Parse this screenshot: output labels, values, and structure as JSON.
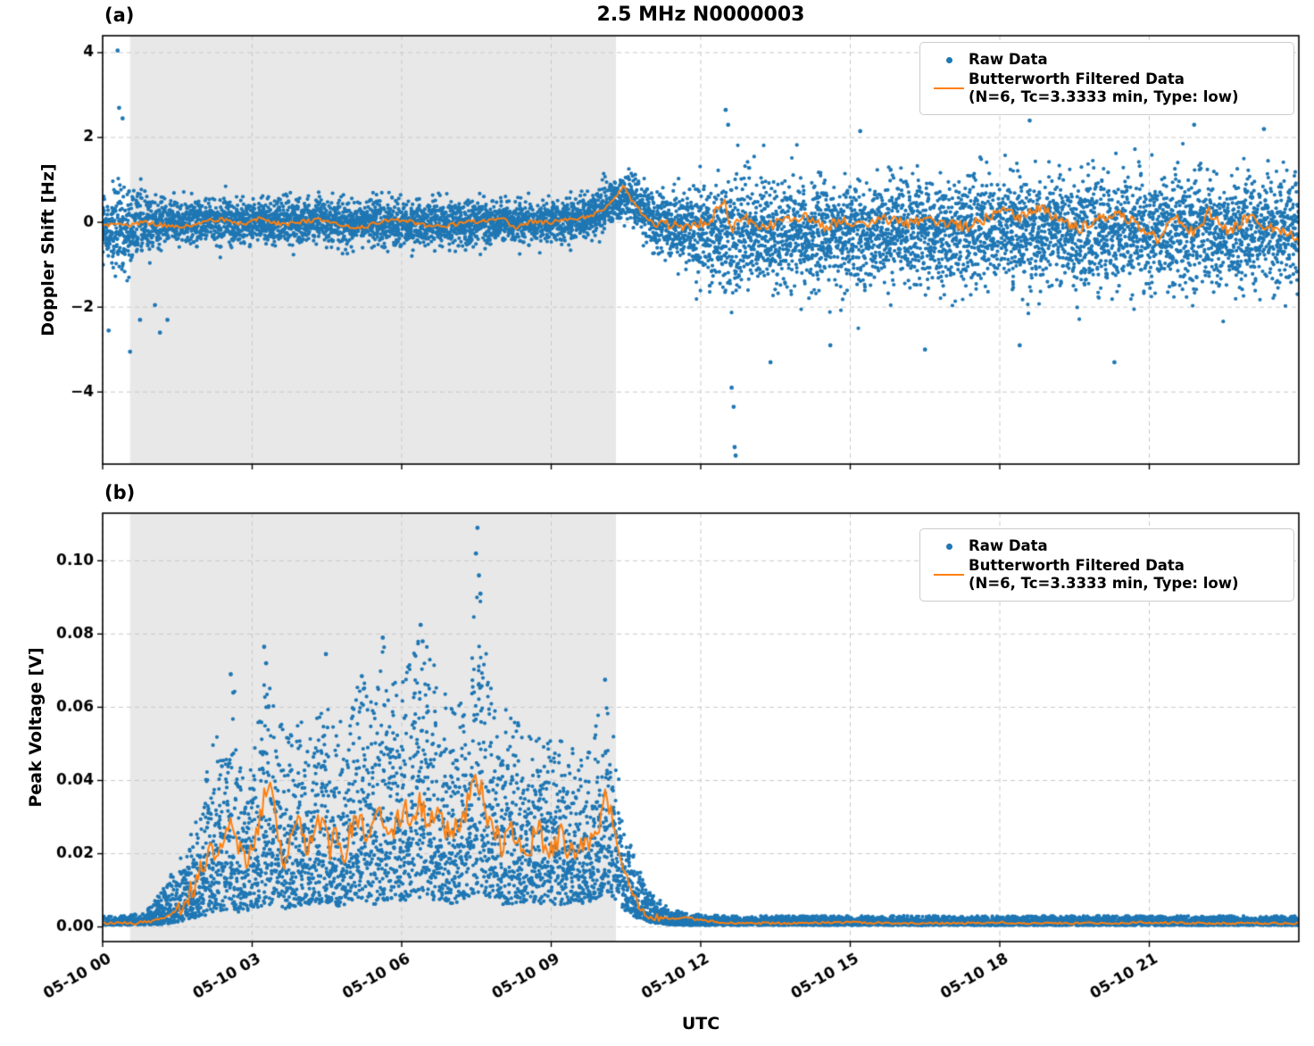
{
  "page": {
    "title": "2.5 MHz N0000003",
    "panel_a_label": "(a)",
    "panel_b_label": "(b)",
    "x_axis_label": "UTC"
  },
  "legend": {
    "raw_label": "Raw Data",
    "filtered_label": "Butterworth Filtered Data",
    "filtered_sublabel": "(N=6, Tc=3.3333 min, Type: low)"
  },
  "colors": {
    "raw": "#1f77b4",
    "filtered": "#ff7f0e",
    "shading": "#e8e8e8",
    "grid": "#c9c9c9",
    "spine": "#000000",
    "background": "#ffffff"
  },
  "chart_data": [
    {
      "id": "doppler-shift",
      "type": "scatter",
      "panel": "(a)",
      "title": "2.5 MHz N0000003",
      "xlabel": "UTC",
      "ylabel": "Doppler Shift [Hz]",
      "legend": [
        "Raw Data",
        "Butterworth Filtered Data (N=6, Tc=3.3333 min, Type: low)"
      ],
      "xlim_hours": [
        0,
        24
      ],
      "x_start_label": "05-10 00",
      "ylim": [
        -5.7,
        4.4
      ],
      "yticks": [
        -4,
        -2,
        0,
        2,
        4
      ],
      "ytick_labels": [
        "−4",
        "−2",
        "0",
        "2",
        "4"
      ],
      "xticks_hours": [
        0,
        3,
        6,
        9,
        12,
        15,
        18,
        21
      ],
      "xtick_labels": [
        "05-10 00",
        "05-10 03",
        "05-10 06",
        "05-10 09",
        "05-10 12",
        "05-10 15",
        "05-10 18",
        "05-10 21"
      ],
      "show_xtick_labels": false,
      "grid": true,
      "shaded_region_hours": [
        0.55,
        10.3
      ],
      "envelope_mode": "center-spread",
      "raw_envelope": [
        [
          0,
          -0.1,
          0.55
        ],
        [
          0.3,
          -0.15,
          1.1
        ],
        [
          0.7,
          -0.1,
          0.8
        ],
        [
          1.1,
          -0.05,
          0.6
        ],
        [
          1.5,
          0,
          0.5
        ],
        [
          2,
          0,
          0.5
        ],
        [
          2.5,
          0.02,
          0.55
        ],
        [
          3,
          0,
          0.5
        ],
        [
          3.5,
          0.02,
          0.55
        ],
        [
          4,
          0,
          0.5
        ],
        [
          4.5,
          0,
          0.5
        ],
        [
          5,
          -0.03,
          0.5
        ],
        [
          5.5,
          0,
          0.55
        ],
        [
          6,
          0,
          0.55
        ],
        [
          6.5,
          -0.02,
          0.5
        ],
        [
          7,
          -0.03,
          0.5
        ],
        [
          7.5,
          0,
          0.5
        ],
        [
          8,
          0.02,
          0.5
        ],
        [
          8.5,
          0,
          0.45
        ],
        [
          9,
          0,
          0.45
        ],
        [
          9.5,
          0.05,
          0.45
        ],
        [
          9.9,
          0.15,
          0.5
        ],
        [
          10.2,
          0.5,
          0.55
        ],
        [
          10.5,
          0.65,
          0.55
        ],
        [
          10.8,
          0.35,
          0.6
        ],
        [
          11.1,
          0,
          0.7
        ],
        [
          11.5,
          -0.1,
          0.85
        ],
        [
          12,
          -0.2,
          1.05
        ],
        [
          12.6,
          -0.25,
          1.5
        ],
        [
          13,
          -0.25,
          1.25
        ],
        [
          14,
          -0.25,
          1.2
        ],
        [
          15,
          -0.3,
          1.2
        ],
        [
          16,
          -0.2,
          1.2
        ],
        [
          17,
          -0.25,
          1.25
        ],
        [
          18,
          -0.15,
          1.3
        ],
        [
          19,
          -0.2,
          1.3
        ],
        [
          20,
          -0.2,
          1.25
        ],
        [
          21,
          -0.15,
          1.3
        ],
        [
          22,
          -0.2,
          1.3
        ],
        [
          23,
          -0.2,
          1.25
        ],
        [
          24,
          -0.25,
          1.2
        ]
      ],
      "raw_outliers": [
        [
          0.12,
          -2.55
        ],
        [
          0.3,
          4.05
        ],
        [
          0.33,
          2.7
        ],
        [
          0.4,
          2.45
        ],
        [
          0.55,
          -3.05
        ],
        [
          0.75,
          -2.3
        ],
        [
          1.05,
          -1.95
        ],
        [
          1.15,
          -2.6
        ],
        [
          1.3,
          -2.3
        ],
        [
          12.5,
          2.65
        ],
        [
          12.55,
          2.3
        ],
        [
          12.62,
          -3.9
        ],
        [
          12.66,
          -4.35
        ],
        [
          12.68,
          -5.3
        ],
        [
          12.7,
          -5.5
        ],
        [
          13.4,
          -3.3
        ],
        [
          14.6,
          -2.9
        ],
        [
          16.5,
          -3.0
        ],
        [
          18.4,
          -2.9
        ],
        [
          20.3,
          -3.3
        ],
        [
          18.6,
          2.4
        ],
        [
          21.9,
          2.3
        ],
        [
          23.3,
          2.2
        ],
        [
          15.2,
          2.15
        ]
      ],
      "filtered_keypoints": [
        [
          0,
          -0.05
        ],
        [
          0.4,
          -0.08
        ],
        [
          0.8,
          0
        ],
        [
          1.2,
          -0.06
        ],
        [
          1.6,
          -0.12
        ],
        [
          2,
          0.02
        ],
        [
          2.4,
          0.06
        ],
        [
          2.8,
          -0.04
        ],
        [
          3.2,
          0.1
        ],
        [
          3.6,
          -0.06
        ],
        [
          4,
          0.02
        ],
        [
          4.4,
          0.06
        ],
        [
          4.8,
          -0.08
        ],
        [
          5.2,
          -0.12
        ],
        [
          5.6,
          0.02
        ],
        [
          6,
          0.06
        ],
        [
          6.4,
          -0.05
        ],
        [
          6.8,
          -0.1
        ],
        [
          7.2,
          -0.02
        ],
        [
          7.6,
          0.04
        ],
        [
          8,
          0.1
        ],
        [
          8.3,
          -0.12
        ],
        [
          8.6,
          0.02
        ],
        [
          9,
          0
        ],
        [
          9.4,
          0.08
        ],
        [
          9.8,
          0.15
        ],
        [
          10.1,
          0.35
        ],
        [
          10.3,
          0.6
        ],
        [
          10.45,
          0.85
        ],
        [
          10.6,
          0.55
        ],
        [
          10.8,
          0.25
        ],
        [
          11,
          0.02
        ],
        [
          11.4,
          -0.06
        ],
        [
          11.8,
          -0.1
        ],
        [
          12.2,
          0.05
        ],
        [
          12.45,
          0.55
        ],
        [
          12.6,
          -0.15
        ],
        [
          12.9,
          0.1
        ],
        [
          13.3,
          -0.12
        ],
        [
          13.7,
          0.06
        ],
        [
          14.1,
          0.15
        ],
        [
          14.5,
          -0.1
        ],
        [
          14.9,
          0.05
        ],
        [
          15.3,
          -0.08
        ],
        [
          15.7,
          0.1
        ],
        [
          16.1,
          -0.05
        ],
        [
          16.5,
          0.12
        ],
        [
          16.9,
          -0.02
        ],
        [
          17.3,
          -0.12
        ],
        [
          17.7,
          0.08
        ],
        [
          18,
          0.3
        ],
        [
          18.4,
          0.12
        ],
        [
          18.8,
          0.35
        ],
        [
          19.2,
          0.05
        ],
        [
          19.6,
          -0.15
        ],
        [
          20,
          0.12
        ],
        [
          20.4,
          0.22
        ],
        [
          20.8,
          -0.1
        ],
        [
          21.2,
          -0.42
        ],
        [
          21.5,
          0.18
        ],
        [
          21.9,
          -0.3
        ],
        [
          22.2,
          0.25
        ],
        [
          22.6,
          -0.22
        ],
        [
          23,
          0.12
        ],
        [
          23.4,
          -0.15
        ],
        [
          23.8,
          -0.2
        ],
        [
          24,
          -0.38
        ]
      ],
      "filtered_noise": {
        "step": 0.04,
        "segments": [
          [
            0,
            9.8,
            0.05
          ],
          [
            9.8,
            11,
            0.04
          ],
          [
            11,
            24,
            0.13
          ]
        ]
      },
      "scatter_style": {
        "step": 0.02,
        "points_per_step": 7,
        "marker_radius": 2.1,
        "seed": 42
      }
    },
    {
      "id": "peak-voltage",
      "type": "scatter",
      "panel": "(b)",
      "title": "",
      "xlabel": "UTC",
      "ylabel": "Peak Voltage [V]",
      "legend": [
        "Raw Data",
        "Butterworth Filtered Data (N=6, Tc=3.3333 min, Type: low)"
      ],
      "xlim_hours": [
        0,
        24
      ],
      "ylim": [
        -0.004,
        0.113
      ],
      "yticks": [
        0,
        0.02,
        0.04,
        0.06,
        0.08,
        0.1
      ],
      "ytick_labels": [
        "0.00",
        "0.02",
        "0.04",
        "0.06",
        "0.08",
        "0.10"
      ],
      "xticks_hours": [
        0,
        3,
        6,
        9,
        12,
        15,
        18,
        21
      ],
      "xtick_labels": [
        "05-10 00",
        "05-10 03",
        "05-10 06",
        "05-10 09",
        "05-10 12",
        "05-10 15",
        "05-10 18",
        "05-10 21"
      ],
      "show_xtick_labels": true,
      "grid": true,
      "shaded_region_hours": [
        0.55,
        10.3
      ],
      "envelope_mode": "low-high",
      "raw_envelope": [
        [
          0,
          0.0005,
          0.003
        ],
        [
          0.8,
          0.0005,
          0.0035
        ],
        [
          1.2,
          0.0005,
          0.01
        ],
        [
          1.6,
          0.001,
          0.02
        ],
        [
          1.9,
          0.002,
          0.03
        ],
        [
          2.1,
          0.002,
          0.045
        ],
        [
          2.35,
          0.003,
          0.058
        ],
        [
          2.6,
          0.003,
          0.068
        ],
        [
          2.8,
          0.003,
          0.05
        ],
        [
          3,
          0.004,
          0.052
        ],
        [
          3.25,
          0.004,
          0.076
        ],
        [
          3.45,
          0.004,
          0.06
        ],
        [
          3.7,
          0.004,
          0.052
        ],
        [
          3.95,
          0.004,
          0.058
        ],
        [
          4.2,
          0.005,
          0.052
        ],
        [
          4.45,
          0.005,
          0.068
        ],
        [
          4.7,
          0.004,
          0.055
        ],
        [
          4.95,
          0.005,
          0.06
        ],
        [
          5.2,
          0.005,
          0.068
        ],
        [
          5.45,
          0.005,
          0.06
        ],
        [
          5.65,
          0.005,
          0.078
        ],
        [
          5.9,
          0.006,
          0.065
        ],
        [
          6.15,
          0.006,
          0.072
        ],
        [
          6.4,
          0.006,
          0.082
        ],
        [
          6.6,
          0.006,
          0.074
        ],
        [
          6.85,
          0.005,
          0.064
        ],
        [
          7.1,
          0.005,
          0.06
        ],
        [
          7.35,
          0.006,
          0.068
        ],
        [
          7.55,
          0.006,
          0.105
        ],
        [
          7.75,
          0.006,
          0.068
        ],
        [
          8,
          0.005,
          0.06
        ],
        [
          8.3,
          0.005,
          0.058
        ],
        [
          8.6,
          0.005,
          0.054
        ],
        [
          8.9,
          0.005,
          0.05
        ],
        [
          9.2,
          0.005,
          0.054
        ],
        [
          9.5,
          0.005,
          0.05
        ],
        [
          9.8,
          0.006,
          0.048
        ],
        [
          10.05,
          0.008,
          0.066
        ],
        [
          10.25,
          0.006,
          0.055
        ],
        [
          10.45,
          0.004,
          0.032
        ],
        [
          10.7,
          0.002,
          0.018
        ],
        [
          11,
          0.001,
          0.009
        ],
        [
          11.4,
          0.0005,
          0.005
        ],
        [
          11.8,
          0.0004,
          0.0035
        ],
        [
          12.5,
          0.0004,
          0.003
        ],
        [
          14,
          0.0004,
          0.003
        ],
        [
          16,
          0.0004,
          0.003
        ],
        [
          18,
          0.0004,
          0.003
        ],
        [
          20,
          0.0004,
          0.003
        ],
        [
          22,
          0.0004,
          0.003
        ],
        [
          24,
          0.0004,
          0.003
        ]
      ],
      "raw_outliers": [
        [
          7.52,
          0.109
        ],
        [
          7.49,
          0.102
        ],
        [
          7.55,
          0.096
        ],
        [
          7.58,
          0.091
        ],
        [
          2.57,
          0.069
        ],
        [
          3.24,
          0.0765
        ],
        [
          3.28,
          0.072
        ],
        [
          5.62,
          0.079
        ],
        [
          6.38,
          0.0825
        ],
        [
          6.42,
          0.078
        ],
        [
          4.48,
          0.0745
        ],
        [
          10.08,
          0.0675
        ],
        [
          2.62,
          0.064
        ],
        [
          5.2,
          0.0685
        ]
      ],
      "filtered_keypoints": [
        [
          0,
          0.001
        ],
        [
          0.6,
          0.001
        ],
        [
          1,
          0.0015
        ],
        [
          1.3,
          0.003
        ],
        [
          1.6,
          0.006
        ],
        [
          1.8,
          0.01
        ],
        [
          2,
          0.017
        ],
        [
          2.15,
          0.022
        ],
        [
          2.3,
          0.019
        ],
        [
          2.45,
          0.024
        ],
        [
          2.6,
          0.028
        ],
        [
          2.75,
          0.021
        ],
        [
          2.9,
          0.019
        ],
        [
          3.05,
          0.024
        ],
        [
          3.2,
          0.032
        ],
        [
          3.35,
          0.042
        ],
        [
          3.5,
          0.026
        ],
        [
          3.65,
          0.018
        ],
        [
          3.8,
          0.028
        ],
        [
          3.95,
          0.031
        ],
        [
          4.1,
          0.022
        ],
        [
          4.25,
          0.027
        ],
        [
          4.4,
          0.029
        ],
        [
          4.55,
          0.021
        ],
        [
          4.7,
          0.026
        ],
        [
          4.85,
          0.019
        ],
        [
          5,
          0.027
        ],
        [
          5.15,
          0.03
        ],
        [
          5.3,
          0.022
        ],
        [
          5.45,
          0.028
        ],
        [
          5.6,
          0.032
        ],
        [
          5.75,
          0.024
        ],
        [
          5.9,
          0.028
        ],
        [
          6.05,
          0.033
        ],
        [
          6.2,
          0.028
        ],
        [
          6.35,
          0.034
        ],
        [
          6.5,
          0.03
        ],
        [
          6.65,
          0.032
        ],
        [
          6.8,
          0.028
        ],
        [
          6.95,
          0.025
        ],
        [
          7.1,
          0.027
        ],
        [
          7.25,
          0.031
        ],
        [
          7.4,
          0.036
        ],
        [
          7.55,
          0.04
        ],
        [
          7.7,
          0.03
        ],
        [
          7.85,
          0.026
        ],
        [
          8,
          0.022
        ],
        [
          8.15,
          0.027
        ],
        [
          8.3,
          0.025
        ],
        [
          8.45,
          0.021
        ],
        [
          8.6,
          0.023
        ],
        [
          8.75,
          0.026
        ],
        [
          8.9,
          0.021
        ],
        [
          9.05,
          0.023
        ],
        [
          9.2,
          0.025
        ],
        [
          9.35,
          0.02
        ],
        [
          9.5,
          0.022
        ],
        [
          9.65,
          0.021
        ],
        [
          9.8,
          0.024
        ],
        [
          9.95,
          0.028
        ],
        [
          10.1,
          0.036
        ],
        [
          10.25,
          0.028
        ],
        [
          10.4,
          0.018
        ],
        [
          10.55,
          0.012
        ],
        [
          10.7,
          0.007
        ],
        [
          10.85,
          0.004
        ],
        [
          11,
          0.003
        ],
        [
          11.2,
          0.0025
        ],
        [
          11.4,
          0.002
        ],
        [
          11.7,
          0.003
        ],
        [
          11.9,
          0.002
        ],
        [
          12.2,
          0.0015
        ],
        [
          12.6,
          0.001
        ],
        [
          13,
          0.001
        ],
        [
          14,
          0.001
        ],
        [
          15,
          0.0012
        ],
        [
          16,
          0.001
        ],
        [
          17,
          0.001
        ],
        [
          18,
          0.0012
        ],
        [
          19,
          0.001
        ],
        [
          20,
          0.001
        ],
        [
          21,
          0.0012
        ],
        [
          22,
          0.001
        ],
        [
          23,
          0.001
        ],
        [
          24,
          0.001
        ]
      ],
      "filtered_noise": {
        "step": 0.04,
        "segments": [
          [
            0,
            1.5,
            0.0004
          ],
          [
            1.5,
            10.3,
            0.0035
          ],
          [
            10.3,
            11.3,
            0.0012
          ],
          [
            11.3,
            24,
            0.0003
          ]
        ]
      },
      "scatter_style": {
        "step": 0.02,
        "points_per_step": 7,
        "marker_radius": 2.1,
        "seed": 77
      }
    }
  ]
}
